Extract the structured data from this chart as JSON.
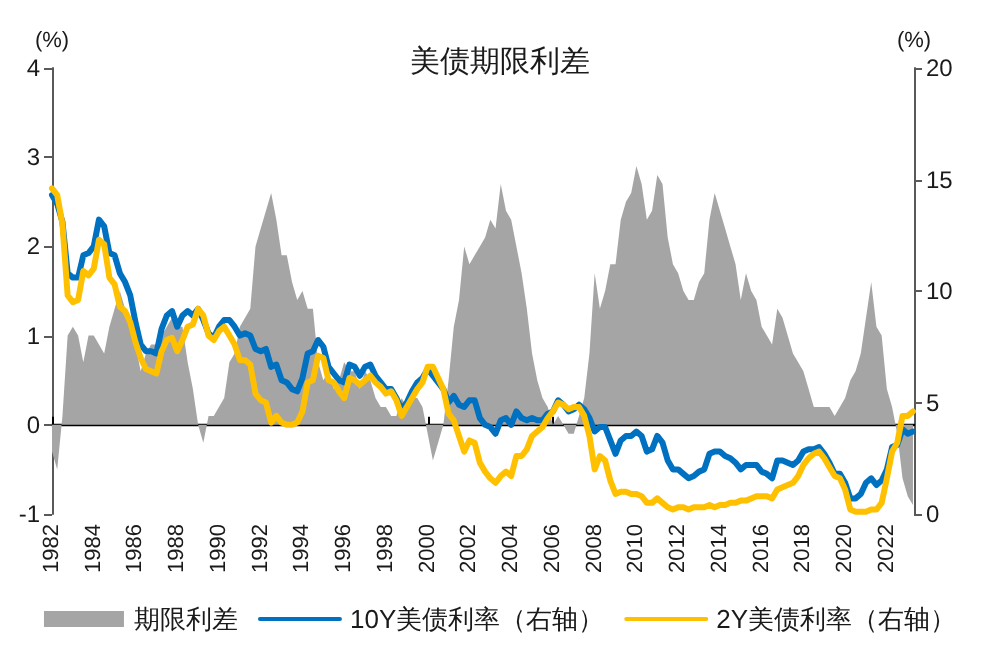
{
  "chart_data": {
    "type": "line",
    "title": "美债期限利差",
    "ylabel": "(%)",
    "y2label": "(%)",
    "legend": "bottom",
    "x": [
      1982,
      1982.25,
      1982.5,
      1982.75,
      1983,
      1983.25,
      1983.5,
      1983.75,
      1984,
      1984.25,
      1984.5,
      1984.75,
      1985,
      1985.25,
      1985.5,
      1985.75,
      1986,
      1986.25,
      1986.5,
      1986.75,
      1987,
      1987.25,
      1987.5,
      1987.75,
      1988,
      1988.25,
      1988.5,
      1988.75,
      1989,
      1989.25,
      1989.5,
      1989.75,
      1990,
      1990.25,
      1990.5,
      1990.75,
      1991,
      1991.25,
      1991.5,
      1991.75,
      1992,
      1992.25,
      1992.5,
      1992.75,
      1993,
      1993.25,
      1993.5,
      1993.75,
      1994,
      1994.25,
      1994.5,
      1994.75,
      1995,
      1995.25,
      1995.5,
      1995.75,
      1996,
      1996.25,
      1996.5,
      1996.75,
      1997,
      1997.25,
      1997.5,
      1997.75,
      1998,
      1998.25,
      1998.5,
      1998.75,
      1999,
      1999.25,
      1999.5,
      1999.75,
      2000,
      2000.25,
      2000.5,
      2000.75,
      2001,
      2001.25,
      2001.5,
      2001.75,
      2002,
      2002.25,
      2002.5,
      2002.75,
      2003,
      2003.25,
      2003.5,
      2003.75,
      2004,
      2004.25,
      2004.5,
      2004.75,
      2005,
      2005.25,
      2005.5,
      2005.75,
      2006,
      2006.25,
      2006.5,
      2006.75,
      2007,
      2007.25,
      2007.5,
      2007.75,
      2008,
      2008.25,
      2008.5,
      2008.75,
      2009,
      2009.25,
      2009.5,
      2009.75,
      2010,
      2010.25,
      2010.5,
      2010.75,
      2011,
      2011.25,
      2011.5,
      2011.75,
      2012,
      2012.25,
      2012.5,
      2012.75,
      2013,
      2013.25,
      2013.5,
      2013.75,
      2014,
      2014.25,
      2014.5,
      2014.75,
      2015,
      2015.25,
      2015.5,
      2015.75,
      2016,
      2016.25,
      2016.5,
      2016.75,
      2017,
      2017.25,
      2017.5,
      2017.75,
      2018,
      2018.25,
      2018.5,
      2018.75,
      2019,
      2019.25,
      2019.5,
      2019.75,
      2020,
      2020.25,
      2020.5,
      2020.75,
      2021,
      2021.25,
      2021.5,
      2021.75,
      2022,
      2022.25,
      2022.5,
      2022.75,
      2023,
      2023.25
    ],
    "series": [
      {
        "name": "期限利差",
        "type": "area",
        "color": "#a5a5a5",
        "values": [
          -0.3,
          -0.5,
          0.1,
          1.0,
          1.1,
          1.0,
          0.7,
          1.0,
          1.0,
          0.9,
          0.8,
          1.1,
          1.3,
          1.5,
          1.3,
          1.2,
          0.9,
          0.6,
          0.8,
          0.9,
          0.9,
          1.0,
          1.1,
          1.2,
          1.1,
          1.1,
          0.7,
          0.4,
          0.0,
          -0.2,
          0.1,
          0.1,
          0.2,
          0.3,
          0.7,
          0.8,
          1.1,
          1.2,
          1.3,
          2.0,
          2.2,
          2.4,
          2.6,
          2.3,
          1.9,
          1.9,
          1.6,
          1.4,
          1.5,
          1.3,
          1.3,
          0.7,
          0.5,
          0.6,
          0.4,
          0.5,
          0.7,
          0.6,
          0.6,
          0.4,
          0.6,
          0.5,
          0.3,
          0.2,
          0.2,
          0.1,
          0.1,
          0.3,
          0.2,
          0.3,
          0.3,
          0.2,
          -0.1,
          -0.4,
          -0.2,
          0.0,
          0.5,
          1.1,
          1.4,
          2.0,
          1.8,
          1.9,
          2.0,
          2.1,
          2.3,
          2.2,
          2.7,
          2.4,
          2.3,
          2.0,
          1.7,
          1.3,
          0.8,
          0.5,
          0.3,
          0.2,
          0.0,
          0.1,
          0.0,
          -0.1,
          -0.1,
          0.1,
          0.3,
          0.8,
          1.7,
          1.3,
          1.5,
          1.8,
          1.8,
          2.3,
          2.5,
          2.6,
          2.9,
          2.7,
          2.3,
          2.4,
          2.8,
          2.7,
          2.1,
          1.8,
          1.7,
          1.5,
          1.4,
          1.4,
          1.6,
          1.7,
          2.3,
          2.6,
          2.4,
          2.2,
          2.0,
          1.8,
          1.4,
          1.7,
          1.5,
          1.4,
          1.1,
          1.0,
          0.9,
          1.3,
          1.2,
          1.0,
          0.8,
          0.7,
          0.6,
          0.4,
          0.2,
          0.2,
          0.2,
          0.2,
          0.1,
          0.2,
          0.3,
          0.5,
          0.6,
          0.8,
          1.2,
          1.6,
          1.1,
          1.0,
          0.4,
          0.2,
          -0.1,
          -0.6,
          -0.8,
          -0.9
        ]
      },
      {
        "name": "10Y美债利率（右轴）",
        "axis": "y2",
        "color": "#0070c0",
        "values": [
          14.3,
          13.9,
          13.1,
          10.8,
          10.6,
          10.6,
          11.6,
          11.7,
          12.0,
          13.2,
          12.9,
          11.7,
          11.6,
          10.8,
          10.4,
          9.8,
          8.6,
          7.6,
          7.3,
          7.3,
          7.2,
          8.3,
          8.9,
          9.1,
          8.4,
          8.9,
          9.1,
          8.9,
          9.2,
          8.7,
          8.1,
          7.9,
          8.4,
          8.7,
          8.7,
          8.4,
          8.0,
          8.1,
          8.0,
          7.4,
          7.3,
          7.4,
          6.6,
          6.7,
          6.0,
          5.9,
          5.6,
          5.5,
          6.1,
          7.2,
          7.3,
          7.8,
          7.5,
          6.6,
          6.3,
          6.0,
          5.9,
          6.7,
          6.6,
          6.2,
          6.6,
          6.7,
          6.2,
          5.9,
          5.6,
          5.6,
          5.2,
          4.7,
          5.0,
          5.5,
          5.9,
          6.1,
          6.5,
          6.2,
          5.9,
          5.6,
          5.0,
          5.3,
          4.9,
          4.8,
          5.1,
          5.1,
          4.3,
          4.0,
          3.9,
          3.6,
          4.2,
          4.3,
          4.0,
          4.6,
          4.3,
          4.2,
          4.3,
          4.2,
          4.2,
          4.5,
          4.6,
          5.1,
          4.9,
          4.6,
          4.7,
          4.9,
          4.7,
          4.3,
          3.7,
          3.9,
          3.9,
          3.3,
          2.7,
          3.3,
          3.5,
          3.5,
          3.7,
          3.5,
          2.8,
          2.9,
          3.5,
          3.2,
          2.4,
          2.0,
          2.0,
          1.8,
          1.6,
          1.7,
          1.9,
          2.0,
          2.7,
          2.8,
          2.8,
          2.6,
          2.5,
          2.3,
          2.0,
          2.2,
          2.2,
          2.2,
          1.9,
          1.8,
          1.6,
          2.4,
          2.4,
          2.3,
          2.2,
          2.4,
          2.8,
          2.9,
          2.9,
          3.0,
          2.7,
          2.3,
          1.8,
          1.8,
          1.4,
          0.7,
          0.7,
          0.9,
          1.4,
          1.6,
          1.3,
          1.5,
          2.0,
          3.0,
          3.1,
          3.8,
          3.6,
          3.7
        ]
      },
      {
        "name": "2Y美债利率（右轴）",
        "axis": "y2",
        "color": "#ffc000",
        "values": [
          14.6,
          14.3,
          13.0,
          9.8,
          9.5,
          9.6,
          10.9,
          10.7,
          11.0,
          12.3,
          12.1,
          10.6,
          10.3,
          9.3,
          9.1,
          8.6,
          7.7,
          7.0,
          6.5,
          6.4,
          6.3,
          7.3,
          7.8,
          7.9,
          7.3,
          7.8,
          8.4,
          8.5,
          9.2,
          8.9,
          8.0,
          7.8,
          8.2,
          8.4,
          8.0,
          7.6,
          6.9,
          6.9,
          6.7,
          5.4,
          5.1,
          5.0,
          4.1,
          4.4,
          4.1,
          4.0,
          4.0,
          4.1,
          4.6,
          5.9,
          6.0,
          7.1,
          7.0,
          6.0,
          5.9,
          5.5,
          5.2,
          6.1,
          6.0,
          5.8,
          6.0,
          6.2,
          5.9,
          5.7,
          5.4,
          5.5,
          5.1,
          4.4,
          4.8,
          5.2,
          5.6,
          5.9,
          6.6,
          6.6,
          6.1,
          5.6,
          4.5,
          4.2,
          3.5,
          2.8,
          3.3,
          3.2,
          2.3,
          1.9,
          1.6,
          1.4,
          1.7,
          1.9,
          1.7,
          2.6,
          2.6,
          2.9,
          3.5,
          3.7,
          3.9,
          4.3,
          4.6,
          5.0,
          4.9,
          4.7,
          4.8,
          4.8,
          4.4,
          3.5,
          2.0,
          2.6,
          2.4,
          1.5,
          0.9,
          1.0,
          1.0,
          0.9,
          0.9,
          0.8,
          0.5,
          0.5,
          0.7,
          0.5,
          0.3,
          0.2,
          0.3,
          0.3,
          0.2,
          0.3,
          0.3,
          0.3,
          0.4,
          0.3,
          0.4,
          0.4,
          0.5,
          0.5,
          0.6,
          0.6,
          0.7,
          0.8,
          0.8,
          0.8,
          0.7,
          1.1,
          1.2,
          1.3,
          1.4,
          1.7,
          2.2,
          2.5,
          2.7,
          2.8,
          2.5,
          2.1,
          1.7,
          1.6,
          1.1,
          0.2,
          0.1,
          0.1,
          0.1,
          0.2,
          0.2,
          0.5,
          1.6,
          2.8,
          3.2,
          4.4,
          4.4,
          4.6
        ]
      }
    ],
    "xlim": [
      1982,
      2023.3
    ],
    "xticks": [
      1982,
      1984,
      1986,
      1988,
      1990,
      1992,
      1994,
      1996,
      1998,
      2000,
      2002,
      2004,
      2006,
      2008,
      2010,
      2012,
      2014,
      2016,
      2018,
      2020,
      2022
    ],
    "ylim": [
      -1,
      4
    ],
    "yticks": [
      -1,
      0,
      1,
      2,
      3,
      4
    ],
    "y2lim": [
      0,
      20
    ],
    "y2ticks": [
      0,
      5,
      10,
      15,
      20
    ]
  }
}
